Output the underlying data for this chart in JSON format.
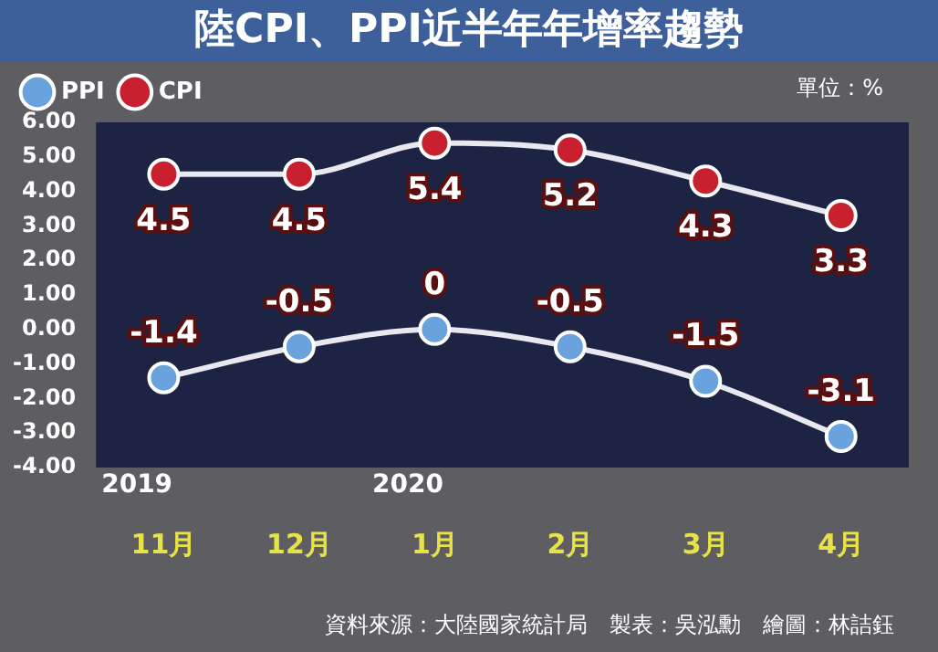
{
  "chart_data": {
    "type": "line",
    "title": "陸CPI、PPI近半年年增率趨勢",
    "categories": [
      "11月",
      "12月",
      "1月",
      "2月",
      "3月",
      "4月"
    ],
    "series": [
      {
        "name": "PPI",
        "color": "#6aa2de",
        "values": [
          -1.4,
          -0.5,
          0,
          -0.5,
          -1.5,
          -3.1
        ]
      },
      {
        "name": "CPI",
        "color": "#c8202f",
        "values": [
          4.5,
          4.5,
          5.4,
          5.2,
          4.3,
          3.3
        ]
      }
    ],
    "ylim": [
      -4,
      6
    ],
    "yticks": [
      {
        "value": -4,
        "label": "-4.00"
      },
      {
        "value": -3,
        "label": "-3.00"
      },
      {
        "value": -2,
        "label": "-2.00"
      },
      {
        "value": -1,
        "label": "-1.00"
      },
      {
        "value": 0,
        "label": "0.00"
      },
      {
        "value": 1,
        "label": "1.00"
      },
      {
        "value": 2,
        "label": "2.00"
      },
      {
        "value": 3,
        "label": "3.00"
      },
      {
        "value": 4,
        "label": "4.00"
      },
      {
        "value": 5,
        "label": "5.00"
      },
      {
        "value": 6,
        "label": "6.00"
      }
    ],
    "data_labels": true,
    "grid": false,
    "legend": "top left",
    "marker": "circle",
    "annotations": [
      "單位：%",
      "2019",
      "2020",
      "資料來源：大陸國家統計局　製表：吳泓勳　繪圖：林詰鈺"
    ]
  }
}
